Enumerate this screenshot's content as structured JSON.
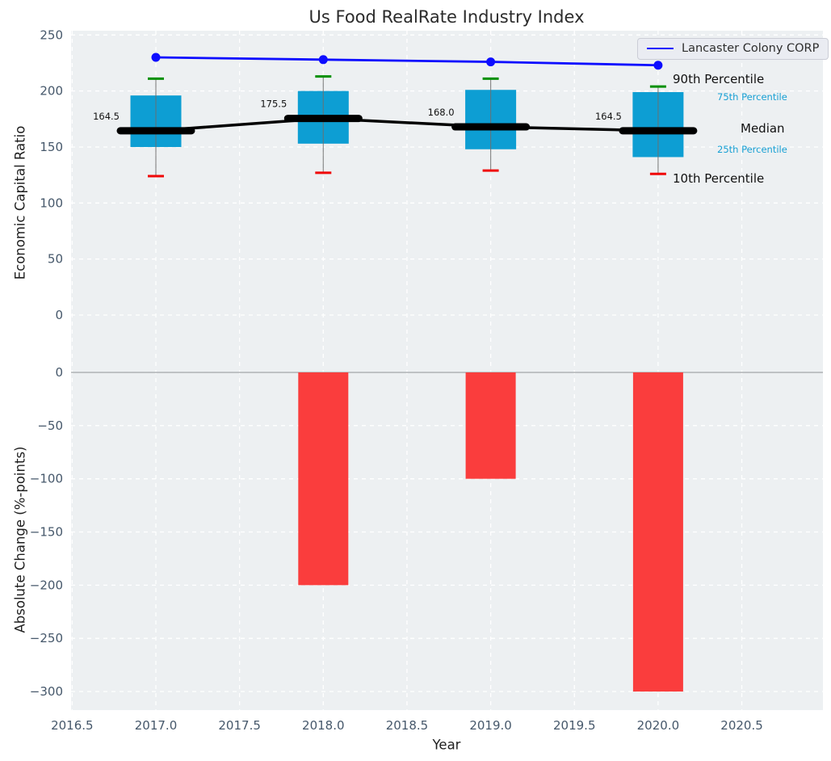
{
  "chart_data": {
    "type": "boxplot+line+bar",
    "title": "Us Food RealRate Industry Index",
    "xlabel": "Year",
    "x": [
      2017,
      2018,
      2019,
      2020
    ],
    "x_tick_labels": [
      "2016.5",
      "2017.0",
      "2017.5",
      "2018.0",
      "2018.5",
      "2019.0",
      "2019.5",
      "2020.0",
      "2020.5"
    ],
    "top_panel": {
      "ylabel": "Economic Capital Ratio",
      "y_ticks": [
        250,
        200,
        150,
        100,
        50,
        0
      ],
      "y_tick_labels": [
        "250",
        "200",
        "150",
        "100",
        "50",
        "0"
      ],
      "ylim": [
        -42,
        254
      ],
      "grid": true,
      "boxes": [
        {
          "year": 2017,
          "p10": 124,
          "p25": 150,
          "median": 164.5,
          "p75": 196,
          "p90": 211,
          "label": "164.5"
        },
        {
          "year": 2018,
          "p10": 127,
          "p25": 153,
          "median": 175.5,
          "p75": 200,
          "p90": 213,
          "label": "175.5"
        },
        {
          "year": 2019,
          "p10": 129,
          "p25": 148,
          "median": 168.0,
          "p75": 201,
          "p90": 211,
          "label": "168.0"
        },
        {
          "year": 2020,
          "p10": 126,
          "p25": 141,
          "median": 164.5,
          "p75": 199,
          "p90": 204,
          "label": "164.5"
        }
      ],
      "company_series": {
        "name": "Lancaster Colony CORP",
        "values": [
          230,
          228,
          226,
          223
        ]
      },
      "percentile_labels": [
        "90th Percentile",
        "75th Percentile",
        "Median",
        "25th Percentile",
        "10th Percentile"
      ]
    },
    "bottom_panel": {
      "ylabel": "Absolute Change (%-points)",
      "y_ticks": [
        0,
        -50,
        -100,
        -150,
        -200,
        -250,
        -300
      ],
      "y_tick_labels": [
        "0",
        "−50",
        "−100",
        "−150",
        "−200",
        "−250",
        "−300"
      ],
      "ylim": [
        -318,
        10
      ],
      "bars": [
        {
          "year": 2018,
          "value": -200
        },
        {
          "year": 2019,
          "value": -100
        },
        {
          "year": 2020,
          "value": -300
        }
      ]
    },
    "legend": {
      "label": "Lancaster Colony CORP",
      "position": "upper right"
    },
    "colors": {
      "panel_background": "#edf0f2",
      "grid": "#ffffff",
      "box_fill": "#0d9ed3",
      "whisker": "#6e6e6e",
      "cap_high": "#009000",
      "cap_low": "#f00808",
      "median": "#000000",
      "company_line": "#0d0dff",
      "bar": "#fa3d3d",
      "zero_line": "#aeb1b4",
      "tick_label": "#46586b",
      "annotation_big": "#111111",
      "annotation_small": "#18a0d4",
      "value_label": "#111111"
    }
  }
}
